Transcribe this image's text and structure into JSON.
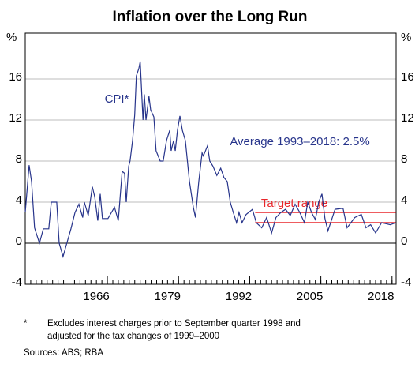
{
  "chart_data": {
    "type": "line",
    "title": "Inflation over the Long Run",
    "ylabel": "%",
    "y2label": "%",
    "x": [
      1951.0,
      1951.7,
      1952.15,
      1952.7,
      1953.6,
      1954.3,
      1955.3,
      1955.75,
      1956.75,
      1957.2,
      1957.9,
      1958.6,
      1959.35,
      1960.1,
      1960.8,
      1961.5,
      1961.8,
      1962.5,
      1963.25,
      1963.7,
      1964.25,
      1964.7,
      1965.1,
      1966.1,
      1967.3,
      1968.0,
      1968.7,
      1969.15,
      1969.45,
      1969.9,
      1970.15,
      1970.6,
      1971.0,
      1971.3,
      1971.75,
      1972.0,
      1972.5,
      1972.75,
      1973.05,
      1973.6,
      1973.9,
      1974.5,
      1974.9,
      1975.65,
      1976.2,
      1976.8,
      1977.4,
      1977.65,
      1978.1,
      1978.4,
      1978.8,
      1979.25,
      1979.7,
      1980.25,
      1981.0,
      1981.7,
      1982.1,
      1982.7,
      1983.3,
      1983.55,
      1984.3,
      1984.7,
      1985.3,
      1986.0,
      1986.7,
      1987.3,
      1987.9,
      1988.45,
      1989.0,
      1989.6,
      1990.05,
      1990.6,
      1991.35,
      1992.5,
      1993.2,
      1994.2,
      1995.1,
      1996.0,
      1996.8,
      1997.7,
      1998.55,
      1999.4,
      2000.3,
      2001.15,
      2002.0,
      2002.6,
      2003.3,
      2004.0,
      2004.6,
      2005.2,
      2005.75,
      2006.3,
      2007.6,
      2009.05,
      2009.8,
      2011.2,
      2012.4,
      2013.25,
      2014.1,
      2015.0,
      2016.1,
      2017.7,
      2018.7
    ],
    "series": [
      {
        "name": "CPI*",
        "color": "#27348b",
        "values": [
          3,
          7.6,
          6,
          1.5,
          0,
          1.4,
          1.4,
          4,
          4,
          0,
          -1.3,
          0,
          1.4,
          3,
          3.8,
          2.5,
          4,
          2.7,
          5.5,
          4.5,
          2.2,
          4.8,
          2.4,
          2.4,
          3.5,
          2.2,
          7,
          6.8,
          4,
          7.5,
          8,
          10,
          12.5,
          16.3,
          17,
          17.7,
          12,
          14.5,
          12,
          14.3,
          13,
          12.3,
          9,
          8,
          8,
          10,
          11,
          9,
          10,
          9,
          11,
          12.4,
          11,
          10,
          6,
          3.5,
          2.5,
          6,
          8.8,
          8.5,
          9.5,
          8,
          7.5,
          6.6,
          7.3,
          6.4,
          6,
          4,
          3,
          2,
          3,
          2,
          2.8,
          3.3,
          2,
          1.5,
          2.5,
          1,
          2.5,
          3,
          3.3,
          2.7,
          3.8,
          3,
          2,
          4,
          3,
          2.3,
          4,
          4.8,
          2.4,
          1.2,
          3.3,
          3.4,
          1.5,
          2.5,
          2.8,
          1.5,
          1.8,
          1,
          2,
          1.8,
          2.0
        ]
      }
    ],
    "target_range": {
      "label": "Target range",
      "color": "#e8262b",
      "values": [
        2,
        3
      ],
      "x": [
        1993,
        2018.7
      ]
    },
    "annotations": [
      "Average 1993–2018: 2.5%"
    ],
    "xlim": [
      1951,
      2018.75
    ],
    "xticks": [
      1966,
      1979,
      1992,
      2005,
      2018
    ],
    "ylim": [
      -4,
      20
    ],
    "yticks": [
      -4,
      0,
      4,
      8,
      12,
      16
    ],
    "grid": true,
    "footnote": {
      "marker": "*",
      "lines": [
        "Excludes interest charges prior to September quarter 1998 and",
        "adjusted for the tax changes of 1999–2000"
      ]
    },
    "sources": "Sources: ABS; RBA"
  }
}
